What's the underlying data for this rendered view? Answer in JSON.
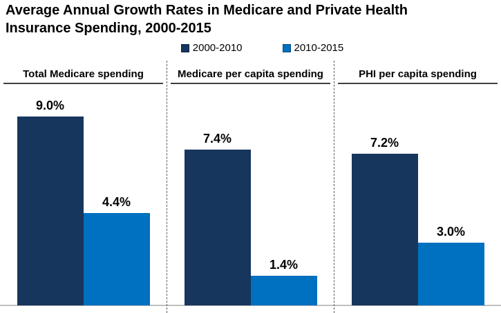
{
  "title": "Average Annual Growth Rates in Medicare and Private Health Insurance Spending, 2000-2015",
  "legend": {
    "items": [
      {
        "label": "2000-2010",
        "color": "#17365D"
      },
      {
        "label": "2010-2015",
        "color": "#0070C0"
      }
    ],
    "position": "top"
  },
  "chart_data": {
    "type": "bar",
    "title": "Average Annual Growth Rates in Medicare and Private Health Insurance Spending, 2000-2015",
    "categories": [
      "Total Medicare spending",
      "Medicare per capita spending",
      "PHI per capita spending"
    ],
    "series": [
      {
        "name": "2000-2010",
        "color": "#17365D",
        "values": [
          9.0,
          7.4,
          7.2
        ],
        "labels": [
          "9.0%",
          "7.4%",
          "7.2%"
        ]
      },
      {
        "name": "2010-2015",
        "color": "#0070C0",
        "values": [
          4.4,
          1.4,
          3.0
        ],
        "labels": [
          "4.4%",
          "1.4%",
          "3.0%"
        ]
      }
    ],
    "ylim": [
      0,
      10
    ],
    "unit": "percent",
    "grid": false,
    "legend_position": "top",
    "value_labels_shown": true
  },
  "colors": {
    "series_2000_2010": "#17365D",
    "series_2010_2015": "#0070C0",
    "baseline": "#BFBFBF",
    "separator": "#595959",
    "text": "#000000"
  }
}
